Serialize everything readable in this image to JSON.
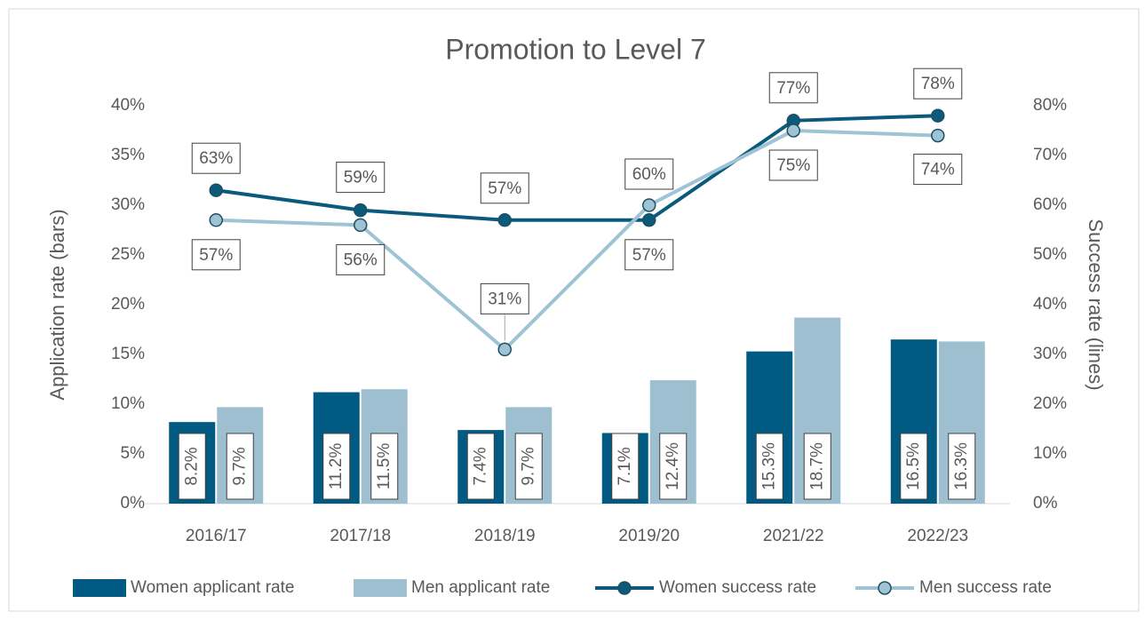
{
  "chart_data": {
    "type": "bar-line",
    "title": "Promotion to Level 7",
    "y_label": "Application rate (bars)",
    "y2_label": "Success rate (lines)",
    "categories": [
      "2016/17",
      "2017/18",
      "2018/19",
      "2019/20",
      "2021/22",
      "2022/23"
    ],
    "ylim": [
      0,
      40
    ],
    "yticks": [
      {
        "value": 0,
        "label": "0%"
      },
      {
        "value": 5,
        "label": "5%"
      },
      {
        "value": 10,
        "label": "10%"
      },
      {
        "value": 15,
        "label": "15%"
      },
      {
        "value": 20,
        "label": "20%"
      },
      {
        "value": 25,
        "label": "25%"
      },
      {
        "value": 30,
        "label": "30%"
      },
      {
        "value": 35,
        "label": "35%"
      },
      {
        "value": 40,
        "label": "40%"
      }
    ],
    "y2lim": [
      0,
      80
    ],
    "y2ticks": [
      {
        "value": 0,
        "label": "0%"
      },
      {
        "value": 10,
        "label": "10%"
      },
      {
        "value": 20,
        "label": "20%"
      },
      {
        "value": 30,
        "label": "30%"
      },
      {
        "value": 40,
        "label": "40%"
      },
      {
        "value": 50,
        "label": "50%"
      },
      {
        "value": 60,
        "label": "60%"
      },
      {
        "value": 70,
        "label": "70%"
      },
      {
        "value": 80,
        "label": "80%"
      }
    ],
    "legend": "bottom",
    "series": [
      {
        "name": "Women applicant rate",
        "type": "bar",
        "color": "#005a82",
        "values": [
          8.2,
          11.2,
          7.4,
          7.1,
          15.3,
          16.5
        ],
        "value_labels": [
          "8.2%",
          "11.2%",
          "7.4%",
          "7.1%",
          "15.3%",
          "16.5%"
        ]
      },
      {
        "name": "Men applicant rate",
        "type": "bar",
        "color": "#9dbfcf",
        "values": [
          9.7,
          11.5,
          9.7,
          12.4,
          18.7,
          16.3
        ],
        "value_labels": [
          "9.7%",
          "11.5%",
          "9.7%",
          "12.4%",
          "18.7%",
          "16.3%"
        ]
      },
      {
        "name": "Women success rate",
        "type": "line",
        "axis": "y2",
        "color": "#0b5a7c",
        "values": [
          63,
          59,
          57,
          57,
          77,
          78
        ],
        "value_labels": [
          "63%",
          "59%",
          "57%",
          "57%",
          "77%",
          "78%"
        ]
      },
      {
        "name": "Men success rate",
        "type": "line",
        "axis": "y2",
        "color": "#9dc3d4",
        "values": [
          57,
          56,
          31,
          60,
          75,
          74
        ],
        "value_labels": [
          "57%",
          "56%",
          "31%",
          "60%",
          "75%",
          "74%"
        ]
      }
    ]
  }
}
